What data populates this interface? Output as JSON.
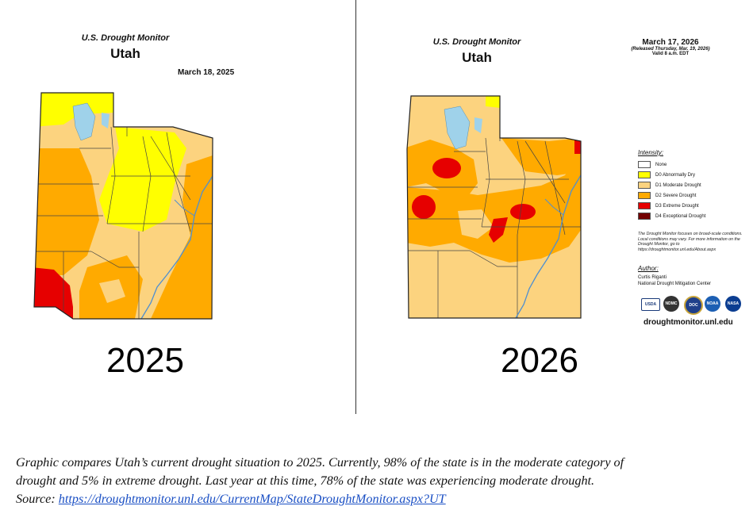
{
  "left_panel": {
    "monitor_title": "U.S. Drought Monitor",
    "state": "Utah",
    "date": "March 18, 2025",
    "year": "2025"
  },
  "right_panel": {
    "monitor_title": "U.S. Drought Monitor",
    "state": "Utah",
    "date": "March 17, 2026",
    "released": "(Released Thursday, Mar. 19, 2026)",
    "valid": "Valid 8 a.m. EDT",
    "year": "2026"
  },
  "legend": {
    "title": "Intensity:",
    "items": [
      {
        "label": "None",
        "color": "#ffffff"
      },
      {
        "label": "D0 Abnormally Dry",
        "color": "#ffff00"
      },
      {
        "label": "D1 Moderate Drought",
        "color": "#fcd37f"
      },
      {
        "label": "D2 Severe Drought",
        "color": "#ffaa00"
      },
      {
        "label": "D3 Extreme Drought",
        "color": "#e60000"
      },
      {
        "label": "D4 Exceptional Drought",
        "color": "#730000"
      }
    ],
    "note": "The Drought Monitor focuses on broad-scale conditions. Local conditions may vary. For more information on the Drought Monitor, go to https://droughtmonitor.unl.edu/About.aspx",
    "author_heading": "Author:",
    "author_name": "Curtis Riganti",
    "author_org": "National Drought Mitigation Center",
    "logos": [
      "USDA",
      "NDMC",
      "DOC",
      "NOAA",
      "NASA"
    ],
    "website": "droughtmonitor.unl.edu"
  },
  "caption": {
    "line1": "Graphic compares Utah’s current drought situation to 2025. Currently, 98% of the state is in the moderate category of",
    "line2": "drought and 5% in extreme drought. Last year at this time, 78% of the state was experiencing moderate drought.",
    "source_label": "Source: ",
    "source_link": "https://droughtmonitor.unl.edu/CurrentMap/StateDroughtMonitor.aspx?UT"
  },
  "colors": {
    "water": "#9fd2ea",
    "river": "#4f8fd0",
    "county_line": "#444444"
  }
}
